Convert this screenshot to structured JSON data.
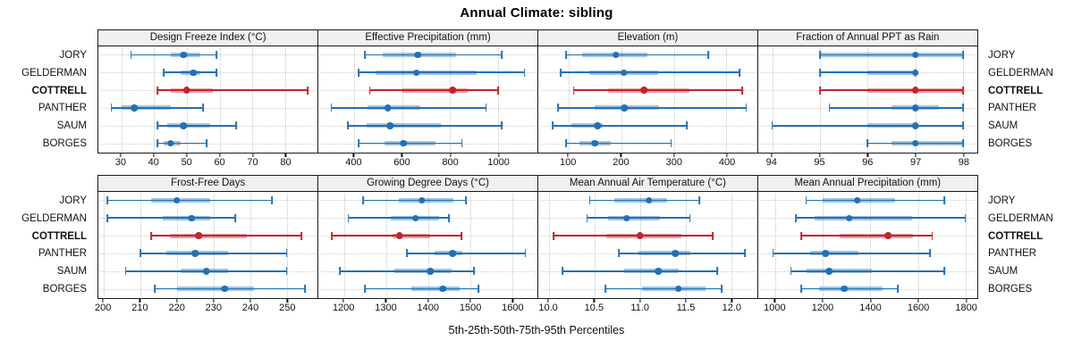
{
  "title": "Annual Climate: sibling",
  "xlabel": "5th-25th-50th-75th-95th Percentiles",
  "stations": [
    "JORY",
    "GELDERMAN",
    "COTTRELL",
    "PANTHER",
    "SAUM",
    "BORGES"
  ],
  "highlight_station": "COTTRELL",
  "colors": {
    "series": "#2171b5",
    "highlight": "#c0262c",
    "strip_bg": "#f0f0f0",
    "grid": "#c9c9c9",
    "border": "#1a1a1a"
  },
  "chart_data": {
    "type": "percentile-interval-trellis",
    "layout": "2 rows x 4 columns",
    "percentiles": [
      5,
      25,
      50,
      75,
      95
    ],
    "panels": [
      {
        "title": "Design Freeze Index (°C)",
        "domain": [
          23,
          90
        ],
        "ticks": [
          30,
          40,
          50,
          60,
          70,
          80
        ],
        "tick_labels": [
          "30",
          "40",
          "50",
          "60",
          "70",
          "80"
        ],
        "series": [
          {
            "name": "JORY",
            "p": [
              33,
              45,
              49,
              54,
              59
            ]
          },
          {
            "name": "GELDERMAN",
            "p": [
              43,
              48,
              52,
              54,
              59
            ]
          },
          {
            "name": "COTTRELL",
            "p": [
              41,
              45,
              50,
              58,
              87
            ]
          },
          {
            "name": "PANTHER",
            "p": [
              27,
              30,
              34,
              45,
              55
            ]
          },
          {
            "name": "SAUM",
            "p": [
              41,
              44,
              49,
              57,
              65
            ]
          },
          {
            "name": "BORGES",
            "p": [
              41,
              43,
              45,
              48,
              56
            ]
          }
        ]
      },
      {
        "title": "Effective Precipitation (mm)",
        "domain": [
          250,
          1165
        ],
        "ticks": [
          400,
          600,
          800,
          1000
        ],
        "tick_labels": [
          "400",
          "600",
          "800",
          "1000"
        ],
        "series": [
          {
            "name": "JORY",
            "p": [
              445,
              520,
              665,
              825,
              1015
            ]
          },
          {
            "name": "GELDERMAN",
            "p": [
              420,
              490,
              660,
              910,
              1110
            ]
          },
          {
            "name": "COTTRELL",
            "p": [
              465,
              600,
              810,
              875,
              1000
            ]
          },
          {
            "name": "PANTHER",
            "p": [
              305,
              455,
              540,
              675,
              950
            ]
          },
          {
            "name": "SAUM",
            "p": [
              375,
              450,
              550,
              760,
              1015
            ]
          },
          {
            "name": "BORGES",
            "p": [
              420,
              525,
              605,
              740,
              850
            ]
          }
        ]
      },
      {
        "title": "Elevation (m)",
        "domain": [
          42,
          459
        ],
        "ticks": [
          100,
          200,
          300,
          400
        ],
        "tick_labels": [
          "100",
          "200",
          "300",
          "400"
        ],
        "series": [
          {
            "name": "JORY",
            "p": [
              95,
              125,
              190,
              250,
              365
            ]
          },
          {
            "name": "GELDERMAN",
            "p": [
              85,
              140,
              205,
              270,
              425
            ]
          },
          {
            "name": "COTTRELL",
            "p": [
              110,
              175,
              243,
              330,
              430
            ]
          },
          {
            "name": "PANTHER",
            "p": [
              80,
              150,
              206,
              272,
              438
            ]
          },
          {
            "name": "SAUM",
            "p": [
              70,
              105,
              155,
              165,
              325
            ]
          },
          {
            "name": "BORGES",
            "p": [
              95,
              120,
              150,
              180,
              295
            ]
          }
        ]
      },
      {
        "title": "Fraction of Annual PPT as Rain",
        "domain": [
          93.7,
          98.3
        ],
        "ticks": [
          94,
          95,
          96,
          97,
          98
        ],
        "tick_labels": [
          "94",
          "95",
          "96",
          "97",
          "98"
        ],
        "series": [
          {
            "name": "JORY",
            "p": [
              95,
              95,
              97,
              98,
              98
            ]
          },
          {
            "name": "GELDERMAN",
            "p": [
              95,
              96,
              97,
              97,
              97
            ]
          },
          {
            "name": "COTTRELL",
            "p": [
              95,
              96,
              97,
              98,
              98
            ]
          },
          {
            "name": "PANTHER",
            "p": [
              95.2,
              96.5,
              97,
              97.5,
              98
            ]
          },
          {
            "name": "SAUM",
            "p": [
              94,
              96,
              97,
              97,
              98
            ]
          },
          {
            "name": "BORGES",
            "p": [
              96,
              96.5,
              97,
              98,
              98
            ]
          }
        ]
      },
      {
        "title": "Frost-Free Days",
        "domain": [
          198.5,
          258.5
        ],
        "ticks": [
          200,
          210,
          220,
          230,
          240,
          250
        ],
        "tick_labels": [
          "200",
          "210",
          "220",
          "230",
          "240",
          "250"
        ],
        "series": [
          {
            "name": "JORY",
            "p": [
              201,
              213,
              220,
              229,
              246
            ]
          },
          {
            "name": "GELDERMAN",
            "p": [
              201,
              216,
              224,
              229,
              236
            ]
          },
          {
            "name": "COTTRELL",
            "p": [
              213,
              218,
              226,
              239,
              254
            ]
          },
          {
            "name": "PANTHER",
            "p": [
              210,
              217,
              225,
              234,
              250
            ]
          },
          {
            "name": "SAUM",
            "p": [
              206,
              221,
              228,
              234,
              250
            ]
          },
          {
            "name": "BORGES",
            "p": [
              214,
              220,
              233,
              241,
              255
            ]
          }
        ]
      },
      {
        "title": "Growing Degree Days (°C)",
        "domain": [
          1138,
          1661
        ],
        "ticks": [
          1200,
          1300,
          1400,
          1500,
          1600
        ],
        "tick_labels": [
          "1200",
          "1300",
          "1400",
          "1500",
          "1600"
        ],
        "series": [
          {
            "name": "JORY",
            "p": [
              1245,
              1330,
              1385,
              1460,
              1490
            ]
          },
          {
            "name": "GELDERMAN",
            "p": [
              1210,
              1310,
              1370,
              1425,
              1450
            ]
          },
          {
            "name": "COTTRELL",
            "p": [
              1170,
              1315,
              1332,
              1405,
              1480
            ]
          },
          {
            "name": "PANTHER",
            "p": [
              1350,
              1415,
              1458,
              1482,
              1632
            ]
          },
          {
            "name": "SAUM",
            "p": [
              1190,
              1320,
              1405,
              1455,
              1510
            ]
          },
          {
            "name": "BORGES",
            "p": [
              1250,
              1360,
              1435,
              1475,
              1520
            ]
          }
        ]
      },
      {
        "title": "Mean Annual Air Temperature (°C)",
        "domain": [
          9.88,
          12.29
        ],
        "ticks": [
          10.0,
          10.5,
          11.0,
          11.5,
          12.0
        ],
        "tick_labels": [
          "10.0",
          "10.5",
          "11.0",
          "11.5",
          "12.0"
        ],
        "series": [
          {
            "name": "JORY",
            "p": [
              10.45,
              10.72,
              11.1,
              11.3,
              11.65
            ]
          },
          {
            "name": "GELDERMAN",
            "p": [
              10.42,
              10.65,
              10.85,
              11.22,
              11.55
            ]
          },
          {
            "name": "COTTRELL",
            "p": [
              10.05,
              10.63,
              11.0,
              11.45,
              11.8
            ]
          },
          {
            "name": "PANTHER",
            "p": [
              10.77,
              10.98,
              11.39,
              11.55,
              12.15
            ]
          },
          {
            "name": "SAUM",
            "p": [
              10.15,
              10.83,
              11.2,
              11.42,
              11.85
            ]
          },
          {
            "name": "BORGES",
            "p": [
              10.62,
              11.02,
              11.42,
              11.72,
              11.9
            ]
          }
        ]
      },
      {
        "title": "Mean Annual Precipitation (mm)",
        "domain": [
          926,
          1850
        ],
        "ticks": [
          1000,
          1200,
          1400,
          1600,
          1800
        ],
        "tick_labels": [
          "1000",
          "1200",
          "1400",
          "1600",
          "1800"
        ],
        "series": [
          {
            "name": "JORY",
            "p": [
              1130,
              1200,
              1345,
              1505,
              1710
            ]
          },
          {
            "name": "GELDERMAN",
            "p": [
              1085,
              1165,
              1310,
              1575,
              1800
            ]
          },
          {
            "name": "COTTRELL",
            "p": [
              1110,
              1270,
              1475,
              1580,
              1660
            ]
          },
          {
            "name": "PANTHER",
            "p": [
              990,
              1145,
              1210,
              1350,
              1650
            ]
          },
          {
            "name": "SAUM",
            "p": [
              1065,
              1130,
              1225,
              1405,
              1710
            ]
          },
          {
            "name": "BORGES",
            "p": [
              1110,
              1185,
              1290,
              1450,
              1515
            ]
          }
        ]
      }
    ]
  }
}
